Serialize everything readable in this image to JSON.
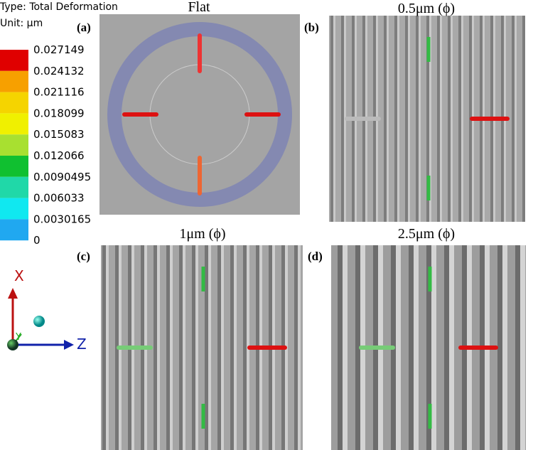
{
  "legend": {
    "type_label": "Type: Total Deformation",
    "unit_label": "Unit: µm",
    "levels": [
      "0.027149",
      "0.024132",
      "0.021116",
      "0.018099",
      "0.015083",
      "0.012066",
      "0.0090495",
      "0.006033",
      "0.0030165",
      "0"
    ]
  },
  "panels": [
    {
      "label": "(a)",
      "title": "Flat"
    },
    {
      "label": "(b)",
      "title": "0.5μm (ϕ)"
    },
    {
      "label": "(c)",
      "title": "1μm (ϕ)"
    },
    {
      "label": "(d)",
      "title": "2.5μm (ϕ)"
    }
  ],
  "axes": {
    "x": "X",
    "y": "Y",
    "z": "Z"
  }
}
